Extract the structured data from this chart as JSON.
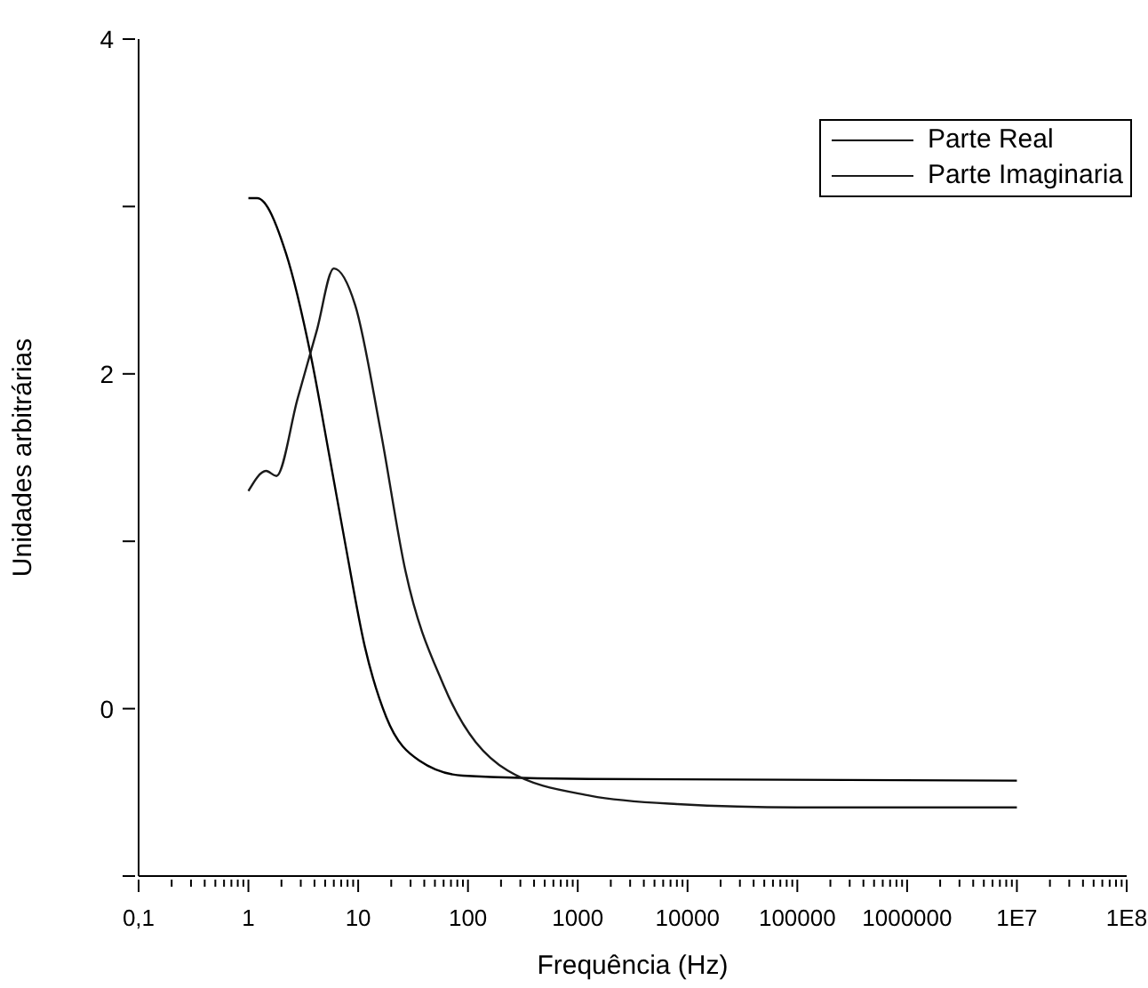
{
  "chart_data": {
    "type": "line",
    "xlabel": "Frequência (Hz)",
    "ylabel": "Unidades arbitrárias",
    "log": "x",
    "legend": "top right",
    "grid": false,
    "marker": "none",
    "line_style": "solid",
    "xlim": [
      0.1,
      100000000
    ],
    "ylim": [
      -1,
      4
    ],
    "xticks": [
      {
        "value": 0.1,
        "label": "0,1"
      },
      {
        "value": 0.2,
        "label": null
      },
      {
        "value": 0.3,
        "label": null
      },
      {
        "value": 0.4,
        "label": null
      },
      {
        "value": 0.5,
        "label": null
      },
      {
        "value": 0.6,
        "label": null
      },
      {
        "value": 0.7,
        "label": null
      },
      {
        "value": 0.8,
        "label": null
      },
      {
        "value": 0.9,
        "label": null
      },
      1,
      {
        "value": 2,
        "label": null
      },
      {
        "value": 3,
        "label": null
      },
      {
        "value": 4,
        "label": null
      },
      {
        "value": 5,
        "label": null
      },
      {
        "value": 6,
        "label": null
      },
      {
        "value": 7,
        "label": null
      },
      {
        "value": 8,
        "label": null
      },
      {
        "value": 9,
        "label": null
      },
      10,
      {
        "value": 20,
        "label": null
      },
      {
        "value": 30,
        "label": null
      },
      {
        "value": 40,
        "label": null
      },
      {
        "value": 50,
        "label": null
      },
      {
        "value": 60,
        "label": null
      },
      {
        "value": 70,
        "label": null
      },
      {
        "value": 80,
        "label": null
      },
      {
        "value": 90,
        "label": null
      },
      100,
      {
        "value": 200,
        "label": null
      },
      {
        "value": 300,
        "label": null
      },
      {
        "value": 400,
        "label": null
      },
      {
        "value": 500,
        "label": null
      },
      {
        "value": 600,
        "label": null
      },
      {
        "value": 700,
        "label": null
      },
      {
        "value": 800,
        "label": null
      },
      {
        "value": 900,
        "label": null
      },
      1000,
      {
        "value": 2000,
        "label": null
      },
      {
        "value": 3000,
        "label": null
      },
      {
        "value": 4000,
        "label": null
      },
      {
        "value": 5000,
        "label": null
      },
      {
        "value": 6000,
        "label": null
      },
      {
        "value": 7000,
        "label": null
      },
      {
        "value": 8000,
        "label": null
      },
      {
        "value": 9000,
        "label": null
      },
      10000,
      {
        "value": 20000,
        "label": null
      },
      {
        "value": 30000,
        "label": null
      },
      {
        "value": 40000,
        "label": null
      },
      {
        "value": 50000,
        "label": null
      },
      {
        "value": 60000,
        "label": null
      },
      {
        "value": 70000,
        "label": null
      },
      {
        "value": 80000,
        "label": null
      },
      {
        "value": 90000,
        "label": null
      },
      100000,
      {
        "value": 200000,
        "label": null
      },
      {
        "value": 300000,
        "label": null
      },
      {
        "value": 400000,
        "label": null
      },
      {
        "value": 500000,
        "label": null
      },
      {
        "value": 600000,
        "label": null
      },
      {
        "value": 700000,
        "label": null
      },
      {
        "value": 800000,
        "label": null
      },
      {
        "value": 900000,
        "label": null
      },
      1000000,
      {
        "value": 2000000,
        "label": null
      },
      {
        "value": 3000000,
        "label": null
      },
      {
        "value": 4000000,
        "label": null
      },
      {
        "value": 5000000,
        "label": null
      },
      {
        "value": 6000000,
        "label": null
      },
      {
        "value": 7000000,
        "label": null
      },
      {
        "value": 8000000,
        "label": null
      },
      {
        "value": 9000000,
        "label": null
      },
      {
        "value": 10000000,
        "label": "1E7"
      },
      {
        "value": 20000000,
        "label": null
      },
      {
        "value": 30000000,
        "label": null
      },
      {
        "value": 40000000,
        "label": null
      },
      {
        "value": 50000000,
        "label": null
      },
      {
        "value": 60000000,
        "label": null
      },
      {
        "value": 70000000,
        "label": null
      },
      {
        "value": 80000000,
        "label": null
      },
      {
        "value": 90000000,
        "label": null
      },
      {
        "value": 100000000,
        "label": "1E8"
      }
    ],
    "yticks": [
      {
        "value": -1,
        "label": null
      },
      0,
      {
        "value": 1,
        "label": null
      },
      2,
      {
        "value": 3,
        "label": null
      },
      4
    ],
    "series": [
      {
        "name": "Parte Real",
        "color": "#000000",
        "x": [
          1,
          1.2,
          2.2,
          3.7,
          5.5,
          7.7,
          11.5,
          18,
          36,
          90,
          1300,
          10000000
        ],
        "values": [
          3.05,
          3.05,
          2.72,
          2.11,
          1.5,
          0.97,
          0.37,
          -0.05,
          -0.31,
          -0.4,
          -0.42,
          -0.43
        ]
      },
      {
        "name": "Parte Imaginaria",
        "color": "#1a1a1a",
        "x": [
          1,
          1.45,
          1.8,
          2.8,
          4.2,
          6,
          9.4,
          16,
          27,
          60,
          230,
          1300,
          8000,
          100000,
          10000000
        ],
        "values": [
          1.3,
          1.42,
          1.39,
          1.85,
          2.26,
          2.63,
          2.41,
          1.66,
          0.82,
          0.14,
          -0.37,
          -0.52,
          -0.57,
          -0.59,
          -0.59
        ]
      }
    ]
  }
}
